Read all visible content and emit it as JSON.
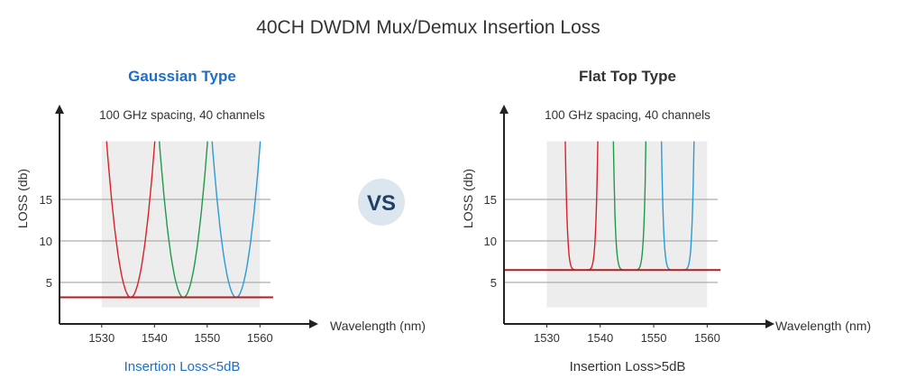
{
  "title": "40CH DWDM Mux/Demux Insertion Loss",
  "vs_label": "VS",
  "colors": {
    "accent_blue": "#1c6fc8",
    "title_dark": "#333333",
    "red": "#d9202a",
    "green": "#1f9a4a",
    "cyan": "#2a9ad8",
    "threshold": "#b01e23",
    "shade": "#ededed",
    "grid": "#9a9a9a",
    "vs_circle": "#dbe6ef",
    "vs_text": "#1f3f66"
  },
  "chart_data": [
    {
      "type": "line",
      "title": "Gaussian Type",
      "annotation": "100 GHz spacing, 40 channels",
      "xlabel": "Wavelength (nm)",
      "ylabel": "LOSS (db)",
      "caption": "Insertion Loss<5dB",
      "x_ticks": [
        1530,
        1540,
        1550,
        1560
      ],
      "y_ticks": [
        5,
        10,
        15
      ],
      "xlim": [
        1522,
        1567
      ],
      "ylim": [
        0,
        26
      ],
      "grid": true,
      "shaded_band": {
        "x": [
          1530,
          1560
        ],
        "y": [
          2,
          22
        ]
      },
      "threshold_loss": 3.2,
      "profile": "gaussian",
      "series": [
        {
          "center": 1535.5,
          "min_loss": 3.2,
          "color": "red"
        },
        {
          "center": 1545.5,
          "min_loss": 3.2,
          "color": "green"
        },
        {
          "center": 1555.5,
          "min_loss": 3.2,
          "color": "cyan"
        }
      ]
    },
    {
      "type": "line",
      "title": "Flat Top Type",
      "annotation": "100 GHz spacing, 40 channels",
      "xlabel": "Wavelength (nm)",
      "ylabel": "LOSS (db)",
      "caption": "Insertion Loss>5dB",
      "x_ticks": [
        1530,
        1540,
        1550,
        1560
      ],
      "y_ticks": [
        5,
        10,
        15
      ],
      "xlim": [
        1522,
        1567
      ],
      "ylim": [
        0,
        26
      ],
      "grid": true,
      "shaded_band": {
        "x": [
          1530,
          1560
        ],
        "y": [
          2,
          22
        ]
      },
      "threshold_loss": 6.5,
      "profile": "flat-top",
      "series": [
        {
          "center": 1536.5,
          "min_loss": 6.5,
          "color": "red"
        },
        {
          "center": 1545.5,
          "min_loss": 6.5,
          "color": "green"
        },
        {
          "center": 1554.5,
          "min_loss": 6.5,
          "color": "cyan"
        }
      ]
    }
  ]
}
